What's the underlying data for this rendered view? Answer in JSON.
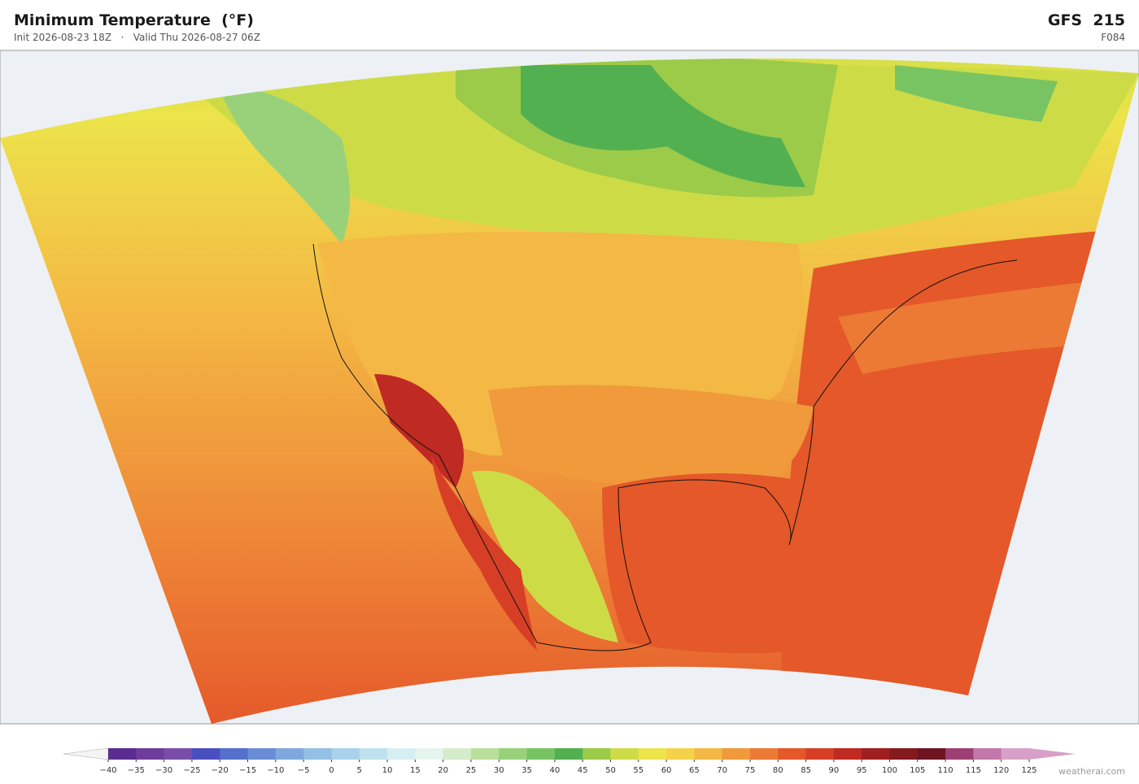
{
  "header": {
    "title": "Minimum Temperature  (°F)",
    "init": "Init 2026-08-23 18Z",
    "separator": "·",
    "valid": "Valid Thu 2026-08-27 06Z",
    "model": "GFS  215",
    "forecast_hour": "F084"
  },
  "colorbar": {
    "ticks": [
      {
        "value": -40,
        "label": "−40"
      },
      {
        "value": -35,
        "label": "−35"
      },
      {
        "value": -30,
        "label": "−30"
      },
      {
        "value": -25,
        "label": "−25"
      },
      {
        "value": -20,
        "label": "−20"
      },
      {
        "value": -15,
        "label": "−15"
      },
      {
        "value": -10,
        "label": "−10"
      },
      {
        "value": -5,
        "label": "−5"
      },
      0,
      5,
      10,
      15,
      20,
      25,
      30,
      35,
      40,
      45,
      50,
      55,
      60,
      65,
      70,
      75,
      80,
      85,
      90,
      95,
      100,
      105,
      110,
      115,
      120,
      125
    ],
    "colors": [
      "#5b2c8f",
      "#6e3d9c",
      "#7a4ea8",
      "#4a4fc0",
      "#5570cc",
      "#6a8ed6",
      "#80a8de",
      "#93c0e4",
      "#a9d2ea",
      "#c0e2ef",
      "#d6eef2",
      "#e6f4ee",
      "#d4ecc8",
      "#b9e09a",
      "#99d17a",
      "#78c463",
      "#52b050",
      "#9ccb4a",
      "#cddc46",
      "#ece44a",
      "#f5d24a",
      "#f4b844",
      "#f09a3c",
      "#ec7a34",
      "#e4582a",
      "#d63f26",
      "#bf2a22",
      "#a01f20",
      "#851a1e",
      "#6e1420",
      "#9c3f74",
      "#c278aa",
      "#d8a0c8"
    ],
    "under_color": "#f4f4f4",
    "over_color": "#d8a0c8"
  },
  "footer": {
    "credit": "weatherai.com"
  }
}
